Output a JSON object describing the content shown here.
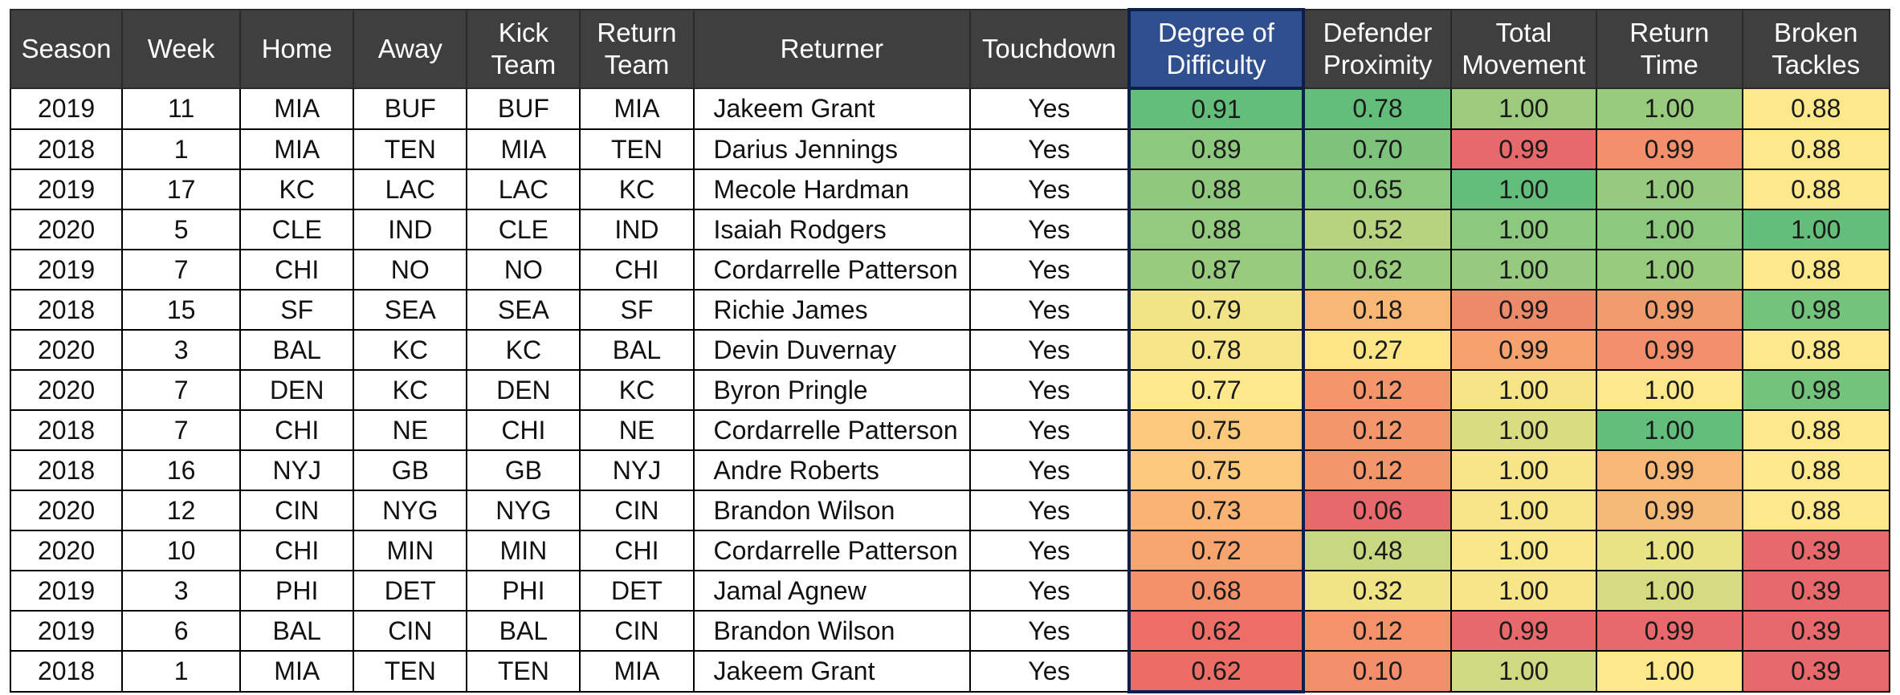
{
  "chart_data": {
    "type": "table",
    "columns": [
      "Season",
      "Week",
      "Home",
      "Away",
      "Kick Team",
      "Return Team",
      "Returner",
      "Touchdown",
      "Degree of Difficulty",
      "Defender Proximity",
      "Total Movement",
      "Return Time",
      "Broken Tackles"
    ],
    "highlighted_column": "Degree of Difficulty",
    "color_scale": {
      "low": "#e8696b",
      "mid": "#fde98b",
      "high": "#63be7b"
    },
    "rows": [
      {
        "season": "2019",
        "week": "11",
        "home": "MIA",
        "away": "BUF",
        "kick_team": "BUF",
        "return_team": "MIA",
        "returner": "Jakeem Grant",
        "touchdown": "Yes",
        "degree_of_difficulty": "0.91",
        "defender_proximity": "0.78",
        "total_movement": "1.00",
        "return_time": "1.00",
        "broken_tackles": "0.88"
      },
      {
        "season": "2018",
        "week": "1",
        "home": "MIA",
        "away": "TEN",
        "kick_team": "MIA",
        "return_team": "TEN",
        "returner": "Darius Jennings",
        "touchdown": "Yes",
        "degree_of_difficulty": "0.89",
        "defender_proximity": "0.70",
        "total_movement": "0.99",
        "return_time": "0.99",
        "broken_tackles": "0.88"
      },
      {
        "season": "2019",
        "week": "17",
        "home": "KC",
        "away": "LAC",
        "kick_team": "LAC",
        "return_team": "KC",
        "returner": "Mecole Hardman",
        "touchdown": "Yes",
        "degree_of_difficulty": "0.88",
        "defender_proximity": "0.65",
        "total_movement": "1.00",
        "return_time": "1.00",
        "broken_tackles": "0.88"
      },
      {
        "season": "2020",
        "week": "5",
        "home": "CLE",
        "away": "IND",
        "kick_team": "CLE",
        "return_team": "IND",
        "returner": "Isaiah Rodgers",
        "touchdown": "Yes",
        "degree_of_difficulty": "0.88",
        "defender_proximity": "0.52",
        "total_movement": "1.00",
        "return_time": "1.00",
        "broken_tackles": "1.00"
      },
      {
        "season": "2019",
        "week": "7",
        "home": "CHI",
        "away": "NO",
        "kick_team": "NO",
        "return_team": "CHI",
        "returner": "Cordarrelle Patterson",
        "touchdown": "Yes",
        "degree_of_difficulty": "0.87",
        "defender_proximity": "0.62",
        "total_movement": "1.00",
        "return_time": "1.00",
        "broken_tackles": "0.88"
      },
      {
        "season": "2018",
        "week": "15",
        "home": "SF",
        "away": "SEA",
        "kick_team": "SEA",
        "return_team": "SF",
        "returner": "Richie James",
        "touchdown": "Yes",
        "degree_of_difficulty": "0.79",
        "defender_proximity": "0.18",
        "total_movement": "0.99",
        "return_time": "0.99",
        "broken_tackles": "0.98"
      },
      {
        "season": "2020",
        "week": "3",
        "home": "BAL",
        "away": "KC",
        "kick_team": "KC",
        "return_team": "BAL",
        "returner": "Devin Duvernay",
        "touchdown": "Yes",
        "degree_of_difficulty": "0.78",
        "defender_proximity": "0.27",
        "total_movement": "0.99",
        "return_time": "0.99",
        "broken_tackles": "0.88"
      },
      {
        "season": "2020",
        "week": "7",
        "home": "DEN",
        "away": "KC",
        "kick_team": "DEN",
        "return_team": "KC",
        "returner": "Byron Pringle",
        "touchdown": "Yes",
        "degree_of_difficulty": "0.77",
        "defender_proximity": "0.12",
        "total_movement": "1.00",
        "return_time": "1.00",
        "broken_tackles": "0.98"
      },
      {
        "season": "2018",
        "week": "7",
        "home": "CHI",
        "away": "NE",
        "kick_team": "CHI",
        "return_team": "NE",
        "returner": "Cordarrelle Patterson",
        "touchdown": "Yes",
        "degree_of_difficulty": "0.75",
        "defender_proximity": "0.12",
        "total_movement": "1.00",
        "return_time": "1.00",
        "broken_tackles": "0.88"
      },
      {
        "season": "2018",
        "week": "16",
        "home": "NYJ",
        "away": "GB",
        "kick_team": "GB",
        "return_team": "NYJ",
        "returner": "Andre Roberts",
        "touchdown": "Yes",
        "degree_of_difficulty": "0.75",
        "defender_proximity": "0.12",
        "total_movement": "1.00",
        "return_time": "0.99",
        "broken_tackles": "0.88"
      },
      {
        "season": "2020",
        "week": "12",
        "home": "CIN",
        "away": "NYG",
        "kick_team": "NYG",
        "return_team": "CIN",
        "returner": "Brandon Wilson",
        "touchdown": "Yes",
        "degree_of_difficulty": "0.73",
        "defender_proximity": "0.06",
        "total_movement": "1.00",
        "return_time": "0.99",
        "broken_tackles": "0.88"
      },
      {
        "season": "2020",
        "week": "10",
        "home": "CHI",
        "away": "MIN",
        "kick_team": "MIN",
        "return_team": "CHI",
        "returner": "Cordarrelle Patterson",
        "touchdown": "Yes",
        "degree_of_difficulty": "0.72",
        "defender_proximity": "0.48",
        "total_movement": "1.00",
        "return_time": "1.00",
        "broken_tackles": "0.39"
      },
      {
        "season": "2019",
        "week": "3",
        "home": "PHI",
        "away": "DET",
        "kick_team": "PHI",
        "return_team": "DET",
        "returner": "Jamal Agnew",
        "touchdown": "Yes",
        "degree_of_difficulty": "0.68",
        "defender_proximity": "0.32",
        "total_movement": "1.00",
        "return_time": "1.00",
        "broken_tackles": "0.39"
      },
      {
        "season": "2019",
        "week": "6",
        "home": "BAL",
        "away": "CIN",
        "kick_team": "BAL",
        "return_team": "CIN",
        "returner": "Brandon Wilson",
        "touchdown": "Yes",
        "degree_of_difficulty": "0.62",
        "defender_proximity": "0.12",
        "total_movement": "0.99",
        "return_time": "0.99",
        "broken_tackles": "0.39"
      },
      {
        "season": "2018",
        "week": "1",
        "home": "MIA",
        "away": "TEN",
        "kick_team": "TEN",
        "return_team": "MIA",
        "returner": "Jakeem Grant",
        "touchdown": "Yes",
        "degree_of_difficulty": "0.62",
        "defender_proximity": "0.10",
        "total_movement": "1.00",
        "return_time": "1.00",
        "broken_tackles": "0.39"
      }
    ],
    "cell_colors": {
      "degree_of_difficulty": [
        "#63be7b",
        "#8cc87e",
        "#90c97e",
        "#93ca7e",
        "#98cb7e",
        "#f1e487",
        "#f7e689",
        "#fde98b",
        "#fbc97c",
        "#fbc97c",
        "#f9b474",
        "#f7a56f",
        "#f3916a",
        "#ed6e67",
        "#ec6c66"
      ],
      "defender_proximity": [
        "#63be7b",
        "#7dc37c",
        "#8cc87e",
        "#b7d37f",
        "#98cb7e",
        "#f8b775",
        "#fce585",
        "#f4956c",
        "#f4966c",
        "#f4966c",
        "#e8696b",
        "#c7d880",
        "#f1e487",
        "#f3926b",
        "#f28e6a"
      ],
      "total_movement": [
        "#9ccb7d",
        "#e8696b",
        "#63be7b",
        "#8cc87e",
        "#96ca7e",
        "#ed8a6a",
        "#f5a26f",
        "#f6e587",
        "#dadc82",
        "#f8e588",
        "#f7e588",
        "#f9e88a",
        "#f7e689",
        "#e8696b",
        "#cfd981"
      ],
      "return_time": [
        "#98cb7e",
        "#f3906b",
        "#96ca7e",
        "#8cc87e",
        "#99cb7e",
        "#f19c6d",
        "#f28f6a",
        "#fde98b",
        "#63be7b",
        "#f7b776",
        "#f5ba77",
        "#e8e485",
        "#d6db82",
        "#e8696b",
        "#fde98b"
      ],
      "broken_tackles": [
        "#fde98b",
        "#fde98b",
        "#fde98b",
        "#63be7b",
        "#fde98b",
        "#74c37d",
        "#fde98b",
        "#74c37d",
        "#fde98b",
        "#fde98b",
        "#fde98b",
        "#e8696b",
        "#e8696b",
        "#e8696b",
        "#e8696b"
      ]
    }
  }
}
